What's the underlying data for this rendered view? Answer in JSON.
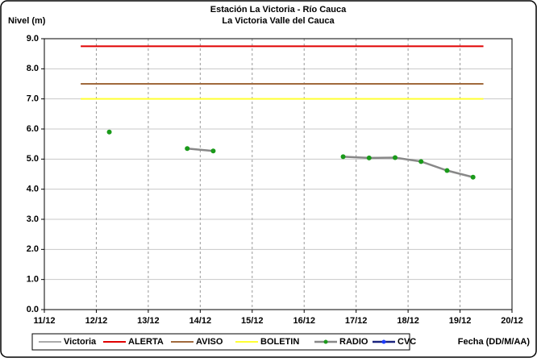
{
  "chart_data": {
    "type": "line",
    "title": "Estación La Victoria - Río Cauca",
    "subtitle": "La Victoria Valle del Cauca",
    "y_label": "Nivel (m)",
    "x_label": "Fecha (DD/M/AA)",
    "xlim": [
      11,
      20
    ],
    "xticks": [
      {
        "value": 11,
        "label": "11/12"
      },
      {
        "value": 12,
        "label": "12/12"
      },
      {
        "value": 13,
        "label": "13/12"
      },
      {
        "value": 14,
        "label": "14/12"
      },
      {
        "value": 15,
        "label": "15/12"
      },
      {
        "value": 16,
        "label": "16/12"
      },
      {
        "value": 17,
        "label": "17/12"
      },
      {
        "value": 18,
        "label": "18/12"
      },
      {
        "value": 19,
        "label": "19/12"
      },
      {
        "value": 20,
        "label": "20/12"
      }
    ],
    "ylim": [
      0,
      9
    ],
    "yticks": [
      {
        "value": 0,
        "label": "0.0"
      },
      {
        "value": 1,
        "label": "1.0"
      },
      {
        "value": 2,
        "label": "2.0"
      },
      {
        "value": 3,
        "label": "3.0"
      },
      {
        "value": 4,
        "label": "4.0"
      },
      {
        "value": 5,
        "label": "5.0"
      },
      {
        "value": 6,
        "label": "6.0"
      },
      {
        "value": 7,
        "label": "7.0"
      },
      {
        "value": 8,
        "label": "8.0"
      },
      {
        "value": 9,
        "label": "9.0"
      }
    ],
    "grid": true,
    "legend": "bottom",
    "series": [
      {
        "name": "Victoria",
        "color": "#aaaaaa",
        "x": [],
        "values": []
      },
      {
        "name": "ALERTA",
        "color": "#e00000",
        "x": [
          11.7,
          19.45
        ],
        "values": [
          8.75,
          8.75
        ]
      },
      {
        "name": "AVISO",
        "color": "#a0693c",
        "x": [
          11.7,
          19.45
        ],
        "values": [
          7.5,
          7.5
        ]
      },
      {
        "name": "BOLETIN",
        "color": "#ffff33",
        "x": [
          11.7,
          19.45
        ],
        "values": [
          7.0,
          7.0
        ]
      },
      {
        "name": "RADIO",
        "color": "#888888",
        "marker": "#1a9a1a",
        "x": [
          12.25,
          13.0,
          13.75,
          14.25,
          15.5,
          16.75,
          17.25,
          17.75,
          18.25,
          18.75,
          19.25
        ],
        "values": [
          5.9,
          null,
          5.35,
          5.27,
          null,
          5.08,
          5.04,
          5.05,
          4.92,
          4.62,
          4.4
        ]
      },
      {
        "name": "CVC",
        "color": "#1a237e",
        "marker": "#1e3cff",
        "x": [],
        "values": []
      }
    ]
  }
}
